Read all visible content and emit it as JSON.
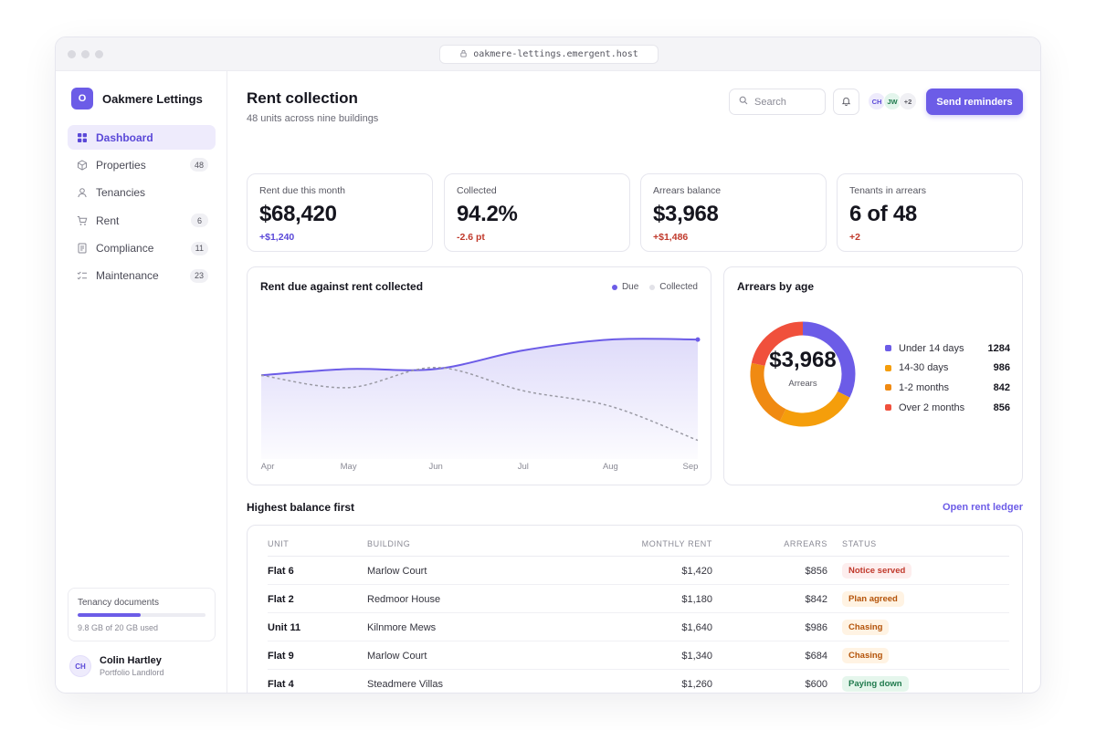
{
  "browser": {
    "url": "oakmere-lettings.emergent.host"
  },
  "sidebar": {
    "brand_initial": "O",
    "brand_name": "Oakmere Lettings",
    "items": [
      {
        "label": "Dashboard",
        "icon": "grid-icon",
        "count": ""
      },
      {
        "label": "Properties",
        "icon": "cube-icon",
        "count": "48"
      },
      {
        "label": "Tenancies",
        "icon": "user-icon",
        "count": ""
      },
      {
        "label": "Rent",
        "icon": "cart-icon",
        "count": "6"
      },
      {
        "label": "Compliance",
        "icon": "document-icon",
        "count": "11"
      },
      {
        "label": "Maintenance",
        "icon": "checklist-icon",
        "count": "23"
      }
    ],
    "storage": {
      "title": "Tenancy documents",
      "used_text": "9.8 GB of 20 GB used",
      "fraction": 0.49
    },
    "user": {
      "initials": "CH",
      "name": "Colin Hartley",
      "role": "Portfolio Landlord"
    }
  },
  "header": {
    "title": "Rent collection",
    "subtitle": "48 units across nine buildings",
    "search_placeholder": "Search",
    "avatars": [
      "CH",
      "JW",
      "+2"
    ],
    "cta_label": "Send reminders"
  },
  "kpis": [
    {
      "label": "Rent due this month",
      "value": "$68,420",
      "delta": "+$1,240",
      "delta_color": "#5a48d8"
    },
    {
      "label": "Collected",
      "value": "94.2%",
      "delta": "-2.6 pt",
      "delta_color": "#c0392b"
    },
    {
      "label": "Arrears balance",
      "value": "$3,968",
      "delta": "+$1,486",
      "delta_color": "#c0392b"
    },
    {
      "label": "Tenants in arrears",
      "value": "6 of 48",
      "delta": "+2",
      "delta_color": "#c0392b"
    }
  ],
  "line_chart": {
    "title": "Rent due against rent collected",
    "legend": [
      "Due",
      "Collected"
    ],
    "colors": {
      "due": "#6c5ce7",
      "collected": "#9a9aa4"
    }
  },
  "chart_data": [
    {
      "type": "line",
      "title": "Rent due against rent collected",
      "x": [
        "Apr",
        "May",
        "Jun",
        "Jul",
        "Aug",
        "Sep"
      ],
      "series": [
        {
          "name": "Due",
          "values": [
            54,
            58,
            58,
            70,
            77,
            77
          ]
        },
        {
          "name": "Collected",
          "values": [
            54,
            46,
            59,
            44,
            34,
            12
          ]
        }
      ],
      "ylim": [
        0,
        100
      ],
      "grid": false,
      "legend_position": "top-right"
    },
    {
      "type": "pie",
      "title": "Arrears by age",
      "center_value": "$3,968",
      "center_label": "Arrears",
      "categories": [
        "Under 14 days",
        "14-30 days",
        "1-2 months",
        "Over 2 months"
      ],
      "values": [
        1284,
        986,
        842,
        856
      ],
      "colors": [
        "#6c5ce7",
        "#f59e0b",
        "#f08a12",
        "#f0503c"
      ]
    }
  ],
  "donut": {
    "title": "Arrears by age",
    "center_value": "$3,968",
    "center_label": "Arrears",
    "items": [
      {
        "label": "Under 14 days",
        "value": "1284",
        "color": "#6c5ce7"
      },
      {
        "label": "14-30 days",
        "value": "986",
        "color": "#f59e0b"
      },
      {
        "label": "1-2 months",
        "value": "842",
        "color": "#f08a12"
      },
      {
        "label": "Over 2 months",
        "value": "856",
        "color": "#f0503c"
      }
    ]
  },
  "table": {
    "title": "Highest balance first",
    "link": "Open rent ledger",
    "columns": [
      "Unit",
      "Building",
      "Monthly rent",
      "Arrears",
      "Status"
    ],
    "rows": [
      {
        "unit": "Flat 6",
        "building": "Marlow Court",
        "rent": "$1,420",
        "arrears": "$856",
        "status": "Notice served",
        "status_bg": "#fdeeee",
        "status_fg": "#c0392b"
      },
      {
        "unit": "Flat 2",
        "building": "Redmoor House",
        "rent": "$1,180",
        "arrears": "$842",
        "status": "Plan agreed",
        "status_bg": "#fff3e3",
        "status_fg": "#b45309"
      },
      {
        "unit": "Unit 11",
        "building": "Kilnmore Mews",
        "rent": "$1,640",
        "arrears": "$986",
        "status": "Chasing",
        "status_bg": "#fff3e3",
        "status_fg": "#b45309"
      },
      {
        "unit": "Flat 9",
        "building": "Marlow Court",
        "rent": "$1,340",
        "arrears": "$684",
        "status": "Chasing",
        "status_bg": "#fff3e3",
        "status_fg": "#b45309"
      },
      {
        "unit": "Flat 4",
        "building": "Steadmere Villas",
        "rent": "$1,260",
        "arrears": "$600",
        "status": "Paying down",
        "status_bg": "#e5f6ec",
        "status_fg": "#1f7a4d"
      }
    ]
  }
}
